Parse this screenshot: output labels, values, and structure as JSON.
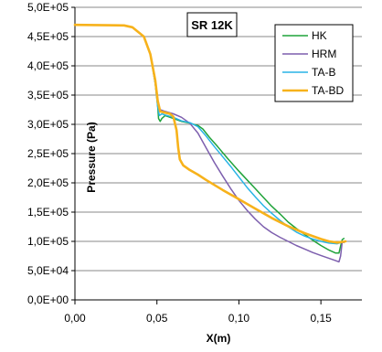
{
  "chart_data": {
    "type": "line",
    "title": "SR 12K",
    "xlabel": "X(m)",
    "ylabel": "Pressure (Pa)",
    "xlim": [
      0,
      0.175
    ],
    "ylim": [
      0,
      500000
    ],
    "x_ticks": [
      0,
      0.05,
      0.1,
      0.15
    ],
    "x_tick_labels": [
      "0,00",
      "0,05",
      "0,10",
      "0,15"
    ],
    "y_ticks": [
      0,
      50000,
      100000,
      150000,
      200000,
      250000,
      300000,
      350000,
      400000,
      450000,
      500000
    ],
    "y_tick_labels": [
      "0,0E+00",
      "5,0E+04",
      "1,0E+05",
      "1,5E+05",
      "2,0E+05",
      "2,5E+05",
      "3,0E+05",
      "3,5E+05",
      "4,0E+05",
      "4,5E+05",
      "5,0E+05"
    ],
    "grid": true,
    "legend_position": "top-right",
    "series": [
      {
        "name": "HK",
        "color": "#1fa33a",
        "points": [
          [
            0,
            470000
          ],
          [
            0.03,
            469000
          ],
          [
            0.035,
            466000
          ],
          [
            0.042,
            450000
          ],
          [
            0.046,
            420000
          ],
          [
            0.049,
            370000
          ],
          [
            0.0505,
            330000
          ],
          [
            0.051,
            310000
          ],
          [
            0.052,
            305000
          ],
          [
            0.053,
            310000
          ],
          [
            0.055,
            315000
          ],
          [
            0.06,
            310000
          ],
          [
            0.065,
            305000
          ],
          [
            0.07,
            302000
          ],
          [
            0.075,
            298000
          ],
          [
            0.078,
            292000
          ],
          [
            0.082,
            278000
          ],
          [
            0.087,
            262000
          ],
          [
            0.093,
            242000
          ],
          [
            0.1,
            220000
          ],
          [
            0.105,
            205000
          ],
          [
            0.11,
            190000
          ],
          [
            0.115,
            175000
          ],
          [
            0.12,
            160000
          ],
          [
            0.125,
            147000
          ],
          [
            0.13,
            133000
          ],
          [
            0.135,
            122000
          ],
          [
            0.14,
            112000
          ],
          [
            0.145,
            102000
          ],
          [
            0.15,
            93000
          ],
          [
            0.155,
            85000
          ],
          [
            0.159,
            80000
          ],
          [
            0.161,
            80000
          ],
          [
            0.162,
            92000
          ],
          [
            0.163,
            103000
          ],
          [
            0.164,
            105000
          ]
        ]
      },
      {
        "name": "HRM",
        "color": "#7d5fae",
        "points": [
          [
            0,
            470000
          ],
          [
            0.03,
            469000
          ],
          [
            0.035,
            466000
          ],
          [
            0.042,
            450000
          ],
          [
            0.046,
            420000
          ],
          [
            0.049,
            370000
          ],
          [
            0.0505,
            335000
          ],
          [
            0.052,
            325000
          ],
          [
            0.055,
            322000
          ],
          [
            0.06,
            318000
          ],
          [
            0.065,
            312000
          ],
          [
            0.07,
            302000
          ],
          [
            0.075,
            285000
          ],
          [
            0.08,
            260000
          ],
          [
            0.085,
            235000
          ],
          [
            0.09,
            212000
          ],
          [
            0.095,
            190000
          ],
          [
            0.1,
            170000
          ],
          [
            0.105,
            153000
          ],
          [
            0.11,
            138000
          ],
          [
            0.115,
            125000
          ],
          [
            0.12,
            115000
          ],
          [
            0.125,
            107000
          ],
          [
            0.13,
            100000
          ],
          [
            0.135,
            93000
          ],
          [
            0.14,
            87000
          ],
          [
            0.145,
            81000
          ],
          [
            0.15,
            76000
          ],
          [
            0.155,
            71000
          ],
          [
            0.159,
            67000
          ],
          [
            0.161,
            65000
          ],
          [
            0.162,
            75000
          ],
          [
            0.163,
            100000
          ],
          [
            0.164,
            98000
          ]
        ]
      },
      {
        "name": "TA-B",
        "color": "#29b4e6",
        "points": [
          [
            0,
            470000
          ],
          [
            0.03,
            469000
          ],
          [
            0.035,
            466000
          ],
          [
            0.042,
            450000
          ],
          [
            0.046,
            420000
          ],
          [
            0.049,
            370000
          ],
          [
            0.0505,
            330000
          ],
          [
            0.0515,
            315000
          ],
          [
            0.053,
            318000
          ],
          [
            0.055,
            316000
          ],
          [
            0.06,
            312000
          ],
          [
            0.065,
            306000
          ],
          [
            0.07,
            303000
          ],
          [
            0.075,
            296000
          ],
          [
            0.08,
            280000
          ],
          [
            0.085,
            262000
          ],
          [
            0.09,
            245000
          ],
          [
            0.095,
            228000
          ],
          [
            0.1,
            210000
          ],
          [
            0.105,
            192000
          ],
          [
            0.11,
            176000
          ],
          [
            0.115,
            161000
          ],
          [
            0.12,
            148000
          ],
          [
            0.125,
            136000
          ],
          [
            0.13,
            125000
          ],
          [
            0.135,
            116000
          ],
          [
            0.14,
            109000
          ],
          [
            0.145,
            104000
          ],
          [
            0.15,
            100000
          ],
          [
            0.155,
            97000
          ],
          [
            0.16,
            96000
          ],
          [
            0.162,
            98000
          ],
          [
            0.164,
            99000
          ]
        ]
      },
      {
        "name": "TA-BD",
        "color": "#f7b21b",
        "points": [
          [
            0,
            470000
          ],
          [
            0.03,
            469000
          ],
          [
            0.035,
            466000
          ],
          [
            0.042,
            450000
          ],
          [
            0.046,
            420000
          ],
          [
            0.049,
            375000
          ],
          [
            0.0505,
            340000
          ],
          [
            0.052,
            322000
          ],
          [
            0.055,
            320000
          ],
          [
            0.058,
            318000
          ],
          [
            0.06,
            313000
          ],
          [
            0.062,
            290000
          ],
          [
            0.063,
            260000
          ],
          [
            0.064,
            240000
          ],
          [
            0.066,
            230000
          ],
          [
            0.07,
            222000
          ],
          [
            0.075,
            214000
          ],
          [
            0.08,
            205000
          ],
          [
            0.09,
            188000
          ],
          [
            0.1,
            172000
          ],
          [
            0.11,
            156000
          ],
          [
            0.12,
            140000
          ],
          [
            0.13,
            126000
          ],
          [
            0.14,
            114000
          ],
          [
            0.15,
            104000
          ],
          [
            0.155,
            100000
          ],
          [
            0.16,
            98000
          ],
          [
            0.163,
            99000
          ],
          [
            0.165,
            100000
          ]
        ]
      }
    ]
  }
}
